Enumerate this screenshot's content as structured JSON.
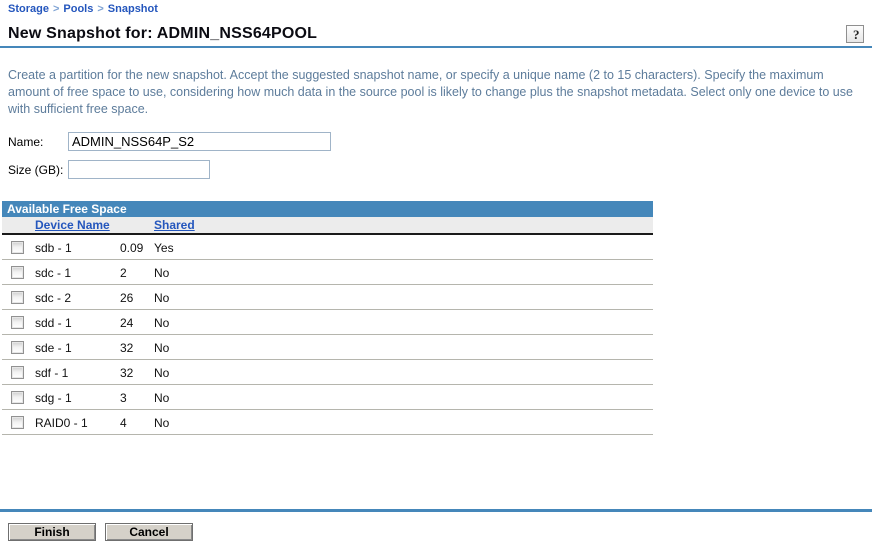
{
  "breadcrumb": {
    "separator": ">",
    "items": [
      "Storage",
      "Pools",
      "Snapshot"
    ]
  },
  "header": {
    "title": "New Snapshot for: ADMIN_NSS64POOL",
    "help_label": "?"
  },
  "description": "Create a partition for the new snapshot. Accept the suggested snapshot name, or specify a unique name (2 to 15 characters). Specify the maximum amount of free space to use, considering how much data in the source pool is likely to change plus the snapshot metadata. Select only one device to use with sufficient free space.",
  "form": {
    "name_label": "Name:",
    "name_value": "ADMIN_NSS64P_S2",
    "size_label": "Size (GB):",
    "size_value": ""
  },
  "table": {
    "title": "Available Free Space",
    "columns": {
      "device": "Device Name",
      "shared": "Shared"
    },
    "rows": [
      {
        "device": "sdb - 1",
        "size": "0.09",
        "shared": "Yes"
      },
      {
        "device": "sdc - 1",
        "size": "2",
        "shared": "No"
      },
      {
        "device": "sdc - 2",
        "size": "26",
        "shared": "No"
      },
      {
        "device": "sdd - 1",
        "size": "24",
        "shared": "No"
      },
      {
        "device": "sde - 1",
        "size": "32",
        "shared": "No"
      },
      {
        "device": "sdf - 1",
        "size": "32",
        "shared": "No"
      },
      {
        "device": "sdg - 1",
        "size": "3",
        "shared": "No"
      },
      {
        "device": "RAID0 - 1",
        "size": "4",
        "shared": "No"
      }
    ]
  },
  "buttons": {
    "finish": "Finish",
    "cancel": "Cancel"
  },
  "colors": {
    "accent_blue": "#4587ba",
    "link_blue": "#2456bd",
    "description_text": "#5d7c9b"
  }
}
